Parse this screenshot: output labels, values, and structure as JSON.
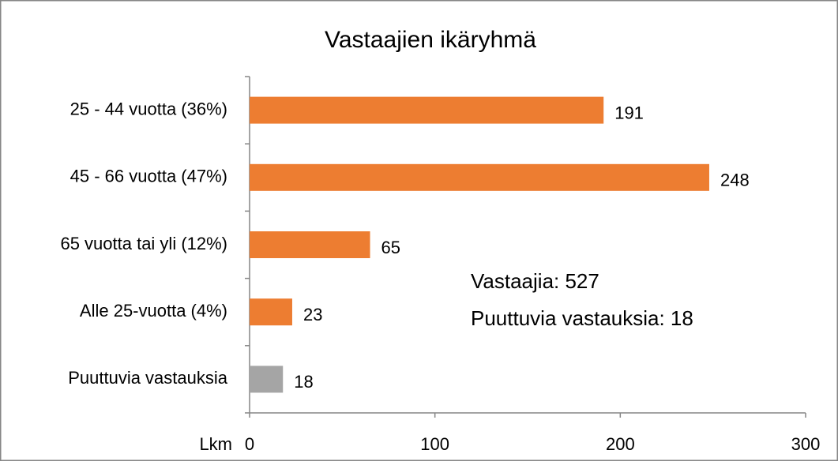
{
  "chart_data": {
    "type": "bar",
    "orientation": "horizontal",
    "title": "Vastaajien ikäryhmä",
    "categories": [
      "25 - 44 vuotta (36%)",
      "45 - 66 vuotta (47%)",
      "65 vuotta tai yli (12%)",
      "Alle 25-vuotta (4%)",
      "Puuttuvia vastauksia"
    ],
    "values": [
      191,
      248,
      65,
      23,
      18
    ],
    "colors": [
      "#ed7d31",
      "#ed7d31",
      "#ed7d31",
      "#ed7d31",
      "#a5a5a5"
    ],
    "x_label": "Lkm",
    "xlim": [
      0,
      300
    ],
    "xticks": [
      0,
      100,
      200,
      300
    ],
    "annotations": [
      "Vastaajia: 527",
      "Puuttuvia vastauksia: 18"
    ]
  }
}
